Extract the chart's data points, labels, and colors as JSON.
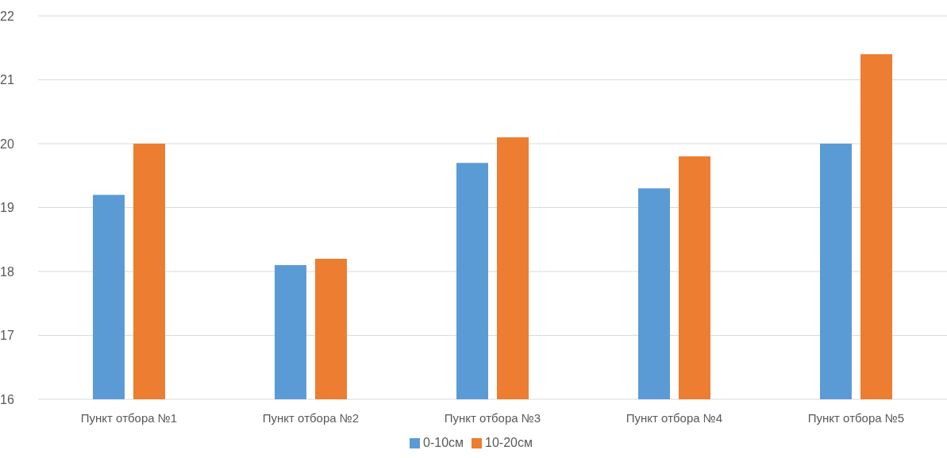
{
  "chart_data": {
    "type": "bar",
    "categories": [
      "Пункт отбора №1",
      "Пункт отбора №2",
      "Пункт отбора №3",
      "Пункт отбора №4",
      "Пункт отбора №5"
    ],
    "series": [
      {
        "name": "0-10см",
        "color": "#5b9bd5",
        "values": [
          19.2,
          18.1,
          19.7,
          19.3,
          20.0
        ]
      },
      {
        "name": "10-20см",
        "color": "#ed7d31",
        "values": [
          20.0,
          18.2,
          20.1,
          19.8,
          21.4
        ]
      }
    ],
    "ylim": [
      16,
      22
    ],
    "yticks": [
      16,
      17,
      18,
      19,
      20,
      21,
      22
    ],
    "grid": "y",
    "legend": "bottom"
  }
}
